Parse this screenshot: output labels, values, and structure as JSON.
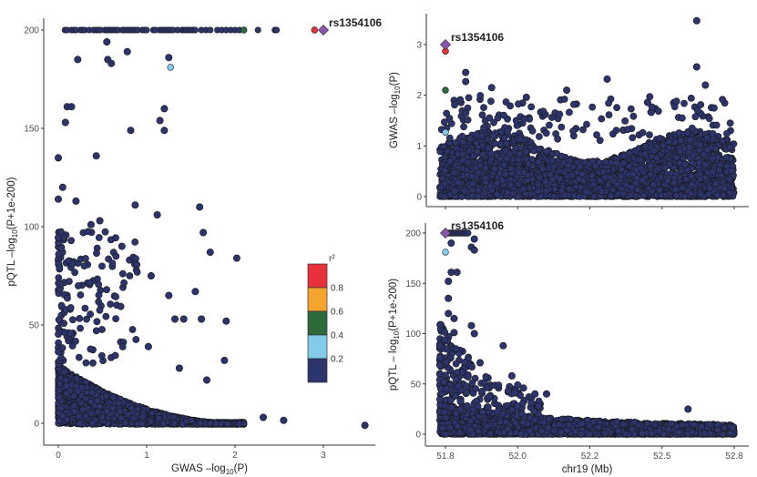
{
  "chart_data": [
    {
      "id": "left",
      "type": "scatter",
      "title": "",
      "xlabel": "GWAS –log10(P)",
      "ylabel": "pQTL –log10(P+1e-200)",
      "xlim": [
        -0.12,
        3.6
      ],
      "ylim": [
        -12,
        210
      ],
      "xticks": [
        0,
        1,
        2,
        3
      ],
      "xtick_labels": [
        "0",
        "1",
        "2",
        "3"
      ],
      "yticks": [
        0,
        50,
        100,
        150,
        200
      ],
      "ytick_labels": [
        "0",
        "50",
        "100",
        "150",
        "200"
      ],
      "grid": false,
      "highlighted_points": [
        {
          "x": 3.0,
          "y": 200,
          "r2": "lead",
          "label": "rs1354106",
          "shape": "diamond"
        },
        {
          "x": 2.9,
          "y": 200,
          "r2": 0.9
        },
        {
          "x": 2.1,
          "y": 200,
          "r2": 0.5
        },
        {
          "x": 1.27,
          "y": 181,
          "r2": 0.3
        }
      ],
      "background_points_note": "thousands of SNPs with r2 < 0.2, concentrated near x 0-1.5, y 0-30; a row at y=200 for x 0.05-2.5",
      "sample_points": [
        {
          "x": 0.55,
          "y": 194
        },
        {
          "x": 0.56,
          "y": 185
        },
        {
          "x": 0.78,
          "y": 189
        },
        {
          "x": 0.22,
          "y": 185
        },
        {
          "x": 1.25,
          "y": 186
        },
        {
          "x": 0.6,
          "y": 183
        },
        {
          "x": 0.1,
          "y": 161
        },
        {
          "x": 0.15,
          "y": 161
        },
        {
          "x": 1.2,
          "y": 160
        },
        {
          "x": 0.08,
          "y": 153
        },
        {
          "x": 1.15,
          "y": 154
        },
        {
          "x": 1.2,
          "y": 149
        },
        {
          "x": 0.82,
          "y": 149
        },
        {
          "x": 0.0,
          "y": 135
        },
        {
          "x": 0.43,
          "y": 136
        },
        {
          "x": 0.05,
          "y": 120
        },
        {
          "x": 0.0,
          "y": 114
        },
        {
          "x": 0.2,
          "y": 113
        },
        {
          "x": 0.87,
          "y": 111
        },
        {
          "x": 1.6,
          "y": 110
        },
        {
          "x": 0.47,
          "y": 103
        },
        {
          "x": 1.12,
          "y": 106
        },
        {
          "x": 0.37,
          "y": 101
        },
        {
          "x": 1.64,
          "y": 97
        },
        {
          "x": 0.72,
          "y": 90
        },
        {
          "x": 1.72,
          "y": 87
        },
        {
          "x": 2.02,
          "y": 84
        },
        {
          "x": 1.05,
          "y": 75
        },
        {
          "x": 1.25,
          "y": 65
        },
        {
          "x": 1.55,
          "y": 67
        },
        {
          "x": 1.32,
          "y": 53
        },
        {
          "x": 1.42,
          "y": 53
        },
        {
          "x": 1.62,
          "y": 53
        },
        {
          "x": 1.9,
          "y": 52
        },
        {
          "x": 1.88,
          "y": 32
        },
        {
          "x": 1.02,
          "y": 39
        },
        {
          "x": 1.37,
          "y": 28
        },
        {
          "x": 1.68,
          "y": 22
        },
        {
          "x": 2.32,
          "y": 3
        },
        {
          "x": 2.55,
          "y": 1.5
        },
        {
          "x": 3.47,
          "y": -1
        }
      ]
    },
    {
      "id": "top-right",
      "type": "scatter",
      "xlabel": "",
      "ylabel": "GWAS –log10(P)",
      "xlim": [
        51.72,
        52.82
      ],
      "ylim": [
        -0.15,
        3.65
      ],
      "xticks": [
        51.8,
        52.05,
        52.3,
        52.55,
        52.8
      ],
      "xtick_labels": [
        "",
        "",
        "",
        "",
        ""
      ],
      "yticks": [
        0,
        1,
        2,
        3
      ],
      "ytick_labels": [
        "0",
        "1",
        "2",
        "3"
      ],
      "grid": false,
      "highlighted_points": [
        {
          "x": 51.8,
          "y": 3.0,
          "r2": "lead",
          "label": "rs1354106",
          "shape": "diamond"
        },
        {
          "x": 51.8,
          "y": 2.87,
          "r2": 0.9
        },
        {
          "x": 51.8,
          "y": 2.1,
          "r2": 0.5
        },
        {
          "x": 51.8,
          "y": 1.27,
          "r2": 0.3
        }
      ],
      "sample_points": [
        {
          "x": 52.67,
          "y": 3.47
        },
        {
          "x": 52.67,
          "y": 2.56
        },
        {
          "x": 51.87,
          "y": 2.45
        },
        {
          "x": 51.87,
          "y": 2.27
        },
        {
          "x": 52.22,
          "y": 2.1
        },
        {
          "x": 52.36,
          "y": 2.32
        },
        {
          "x": 51.96,
          "y": 2.15
        },
        {
          "x": 52.08,
          "y": 1.96
        },
        {
          "x": 52.7,
          "y": 2.2
        },
        {
          "x": 52.5,
          "y": 1.86
        },
        {
          "x": 52.6,
          "y": 1.88
        },
        {
          "x": 52.73,
          "y": 1.75
        }
      ],
      "background_points_note": "thousands of SNPs with r2 < 0.2, y 0-1.3 across 51.78-52.8 Mb"
    },
    {
      "id": "bottom-right",
      "type": "scatter",
      "xlabel": "chr19 (Mb)",
      "ylabel": "pQTL – log10(P+1e-200)",
      "xlim": [
        51.72,
        52.82
      ],
      "ylim": [
        -12,
        210
      ],
      "xticks": [
        51.8,
        52.05,
        52.3,
        52.55,
        52.8
      ],
      "xtick_labels": [
        "51.8",
        "52.0",
        "52.2",
        "52.5",
        "52.8"
      ],
      "yticks": [
        0,
        50,
        100,
        150,
        200
      ],
      "ytick_labels": [
        "0",
        "50",
        "100",
        "150",
        "200"
      ],
      "grid": false,
      "highlighted_points": [
        {
          "x": 51.8,
          "y": 200,
          "r2": "lead",
          "label": "rs1354106",
          "shape": "diamond"
        },
        {
          "x": 51.8,
          "y": 181,
          "r2": 0.3
        }
      ],
      "sample_points": [
        {
          "x": 51.82,
          "y": 190
        },
        {
          "x": 51.9,
          "y": 194
        },
        {
          "x": 51.89,
          "y": 186
        },
        {
          "x": 51.9,
          "y": 183
        },
        {
          "x": 51.82,
          "y": 161
        },
        {
          "x": 51.84,
          "y": 161
        },
        {
          "x": 51.81,
          "y": 152
        },
        {
          "x": 51.81,
          "y": 135
        },
        {
          "x": 51.81,
          "y": 120
        },
        {
          "x": 51.83,
          "y": 115
        },
        {
          "x": 51.83,
          "y": 101
        },
        {
          "x": 51.89,
          "y": 108
        },
        {
          "x": 51.9,
          "y": 100
        },
        {
          "x": 52.0,
          "y": 88
        },
        {
          "x": 51.92,
          "y": 71
        },
        {
          "x": 52.03,
          "y": 58
        },
        {
          "x": 52.05,
          "y": 49
        },
        {
          "x": 52.07,
          "y": 46
        },
        {
          "x": 52.11,
          "y": 40
        },
        {
          "x": 52.15,
          "y": 40
        },
        {
          "x": 52.64,
          "y": 25
        }
      ],
      "background_points_note": "thousands of SNPs with r2 < 0.2; dense near 51.78-51.95 up to ~100, then y 0-30 decaying to ~15 by 52.8"
    }
  ],
  "legend": {
    "title": "r²",
    "placement": "inside-left-plot-right",
    "bins": [
      {
        "range": "0.8-1.0",
        "color": "#e8313a"
      },
      {
        "range": "0.6-0.8",
        "color": "#f5a52e"
      },
      {
        "range": "0.4-0.6",
        "color": "#2d6a3a"
      },
      {
        "range": "0.2-0.4",
        "color": "#84cbe9"
      },
      {
        "range": "0-0.2",
        "color": "#2c346c"
      }
    ],
    "tick_labels": [
      "0.8",
      "0.6",
      "0.4",
      "0.2"
    ]
  },
  "colors": {
    "lead": "#8a55b0",
    "r2_0_0.2": "#2c346c",
    "r2_0.2_0.4": "#84cbe9",
    "r2_0.4_0.6": "#2d6a3a",
    "r2_0.6_0.8": "#f5a52e",
    "r2_0.8_1": "#e8313a",
    "point_stroke": "#1a1a1a"
  }
}
